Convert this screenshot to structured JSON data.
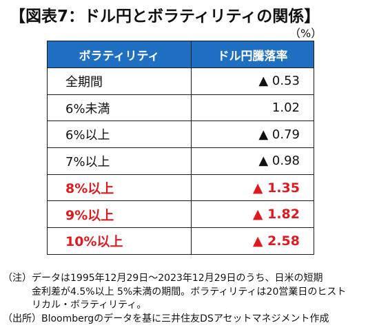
{
  "title": "【図表7：ドル円とボラティリティの関係】",
  "unit": "（%）",
  "table": {
    "headers": [
      "ボラティリティ",
      "ドル円騰落率"
    ],
    "rows": [
      {
        "label": "全期間",
        "value": "▲ 0.53",
        "highlight": false
      },
      {
        "label": "6%未満",
        "value": "1.02",
        "highlight": false
      },
      {
        "label": "6%以上",
        "value": "▲ 0.79",
        "highlight": false
      },
      {
        "label": "7%以上",
        "value": "▲ 0.98",
        "highlight": false
      },
      {
        "label": "8%以上",
        "value": "▲ 1.35",
        "highlight": true
      },
      {
        "label": "9%以上",
        "value": "▲ 1.82",
        "highlight": true
      },
      {
        "label": "10%以上",
        "value": "▲ 2.58",
        "highlight": true
      }
    ]
  },
  "notes": {
    "note_prefix": "（注）",
    "note_lines": [
      "データは1995年12月29日～2023年12月29日のうち、日米の短期",
      "金利差が4.5%以上 5%未満の期間。ボラティリティは20営業日のヒスト",
      "リカル・ボラティリティ。"
    ],
    "source_prefix": "（出所）",
    "source_text": "Bloombergのデータを基に三井住友DSアセットマネジメント作成"
  },
  "colors": {
    "header_bg": "#1f6fc2",
    "header_text": "#ffffff",
    "highlight_text": "#e0191f",
    "border": "#1a1a1a"
  }
}
